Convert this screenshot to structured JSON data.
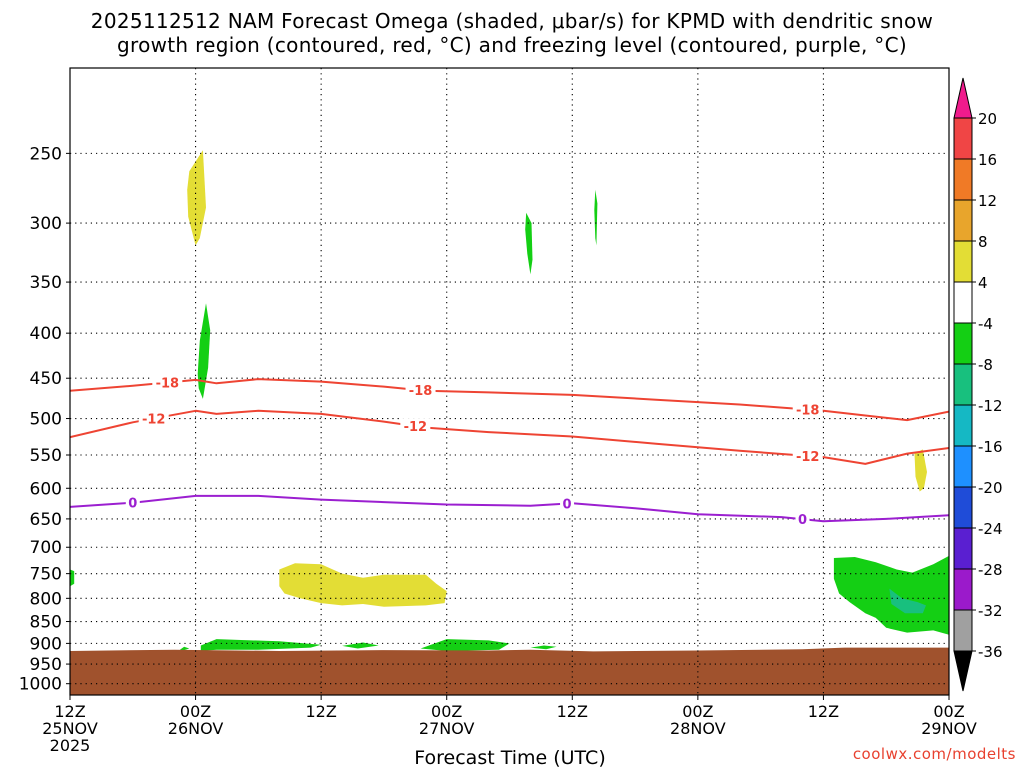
{
  "title_line1": "2025112512 NAM Forecast Omega (shaded, μbar/s) for KPMD with dendritic snow",
  "title_line2": "growth region (contoured, red, °C) and freezing level (contoured, purple, °C)",
  "credit": "coolwx.com/modelts",
  "chart_data": {
    "type": "contour",
    "title": "2025112512 NAM Forecast Omega (shaded, μbar/s) for KPMD with dendritic snow growth region (contoured, red, °C) and freezing level (contoured, purple, °C)",
    "xlabel": "Forecast Time (UTC)",
    "ylabel": "",
    "x_range_hours": [
      0,
      84
    ],
    "y_range_hpa": [
      200,
      1030
    ],
    "y_scale": "log-pressure",
    "grid": true,
    "x_ticks": [
      {
        "hour": 0,
        "lines": [
          "12Z",
          "25NOV",
          "2025"
        ]
      },
      {
        "hour": 12,
        "lines": [
          "00Z",
          "26NOV"
        ]
      },
      {
        "hour": 24,
        "lines": [
          "12Z"
        ]
      },
      {
        "hour": 36,
        "lines": [
          "00Z",
          "27NOV"
        ]
      },
      {
        "hour": 48,
        "lines": [
          "12Z"
        ]
      },
      {
        "hour": 60,
        "lines": [
          "00Z",
          "28NOV"
        ]
      },
      {
        "hour": 72,
        "lines": [
          "12Z"
        ]
      },
      {
        "hour": 84,
        "lines": [
          "00Z",
          "29NOV"
        ]
      }
    ],
    "y_ticks": [
      250,
      300,
      350,
      400,
      450,
      500,
      550,
      600,
      650,
      700,
      750,
      800,
      850,
      900,
      950,
      1000
    ],
    "colorbar": {
      "labels": [
        "20",
        "16",
        "12",
        "8",
        "4",
        "-4",
        "-8",
        "-12",
        "-16",
        "-20",
        "-24",
        "-28",
        "-32",
        "-36"
      ],
      "colors": [
        "#f01b8c",
        "#f04545",
        "#f07a26",
        "#e8a52c",
        "#e3dd35",
        "#ffffff",
        "#14cf14",
        "#18c07e",
        "#15b8c4",
        "#1e90ff",
        "#1f4cd8",
        "#5a1fd1",
        "#9b1acb",
        "#a0a0a0",
        "#000000"
      ]
    },
    "contours": [
      {
        "name": "-18",
        "color": "#ee4433",
        "label_hours": [
          9.3,
          33.5,
          70.5
        ],
        "points": [
          [
            0,
            465
          ],
          [
            6,
            459
          ],
          [
            12,
            452
          ],
          [
            14,
            456
          ],
          [
            18,
            451
          ],
          [
            24,
            454
          ],
          [
            30,
            460
          ],
          [
            34,
            465
          ],
          [
            40,
            467
          ],
          [
            48,
            470
          ],
          [
            56,
            476
          ],
          [
            64,
            482
          ],
          [
            72,
            490
          ],
          [
            76,
            496
          ],
          [
            80,
            502
          ],
          [
            84,
            491
          ]
        ]
      },
      {
        "name": "-12",
        "color": "#ee4433",
        "label_hours": [
          8.0,
          33.0,
          70.5
        ],
        "points": [
          [
            0,
            525
          ],
          [
            6,
            505
          ],
          [
            12,
            490
          ],
          [
            14,
            494
          ],
          [
            18,
            490
          ],
          [
            24,
            494
          ],
          [
            30,
            504
          ],
          [
            34,
            512
          ],
          [
            40,
            518
          ],
          [
            48,
            524
          ],
          [
            56,
            534
          ],
          [
            64,
            544
          ],
          [
            72,
            553
          ],
          [
            76,
            563
          ],
          [
            80,
            548
          ],
          [
            84,
            540
          ]
        ]
      },
      {
        "name": "0",
        "color": "#9b1fd0",
        "label_hours": [
          6.0,
          47.5,
          70.0
        ],
        "points": [
          [
            0,
            630
          ],
          [
            6,
            623
          ],
          [
            12,
            612
          ],
          [
            18,
            612
          ],
          [
            24,
            618
          ],
          [
            30,
            622
          ],
          [
            36,
            626
          ],
          [
            44,
            628
          ],
          [
            48,
            624
          ],
          [
            54,
            632
          ],
          [
            60,
            642
          ],
          [
            68,
            647
          ],
          [
            72,
            654
          ],
          [
            78,
            650
          ],
          [
            84,
            644
          ]
        ]
      }
    ],
    "shaded_regions": [
      {
        "value_range": "4 to 8",
        "color": "#e3dd35",
        "points": [
          [
            11.4,
            262
          ],
          [
            12.7,
            248
          ],
          [
            13.0,
            288
          ],
          [
            12.4,
            312
          ],
          [
            12.0,
            318
          ],
          [
            11.3,
            295
          ],
          [
            11.2,
            275
          ]
        ]
      },
      {
        "value_range": "-4 to -8",
        "color": "#14cf14",
        "points": [
          [
            12.2,
            445
          ],
          [
            12.4,
            408
          ],
          [
            13.0,
            370
          ],
          [
            13.4,
            397
          ],
          [
            13.2,
            438
          ],
          [
            12.7,
            475
          ],
          [
            12.3,
            462
          ]
        ]
      },
      {
        "value_range": "-4 to -8",
        "color": "#14cf14",
        "points": [
          [
            43.6,
            292
          ],
          [
            44.1,
            300
          ],
          [
            44.2,
            330
          ],
          [
            44.0,
            343
          ],
          [
            43.7,
            325
          ],
          [
            43.5,
            305
          ]
        ]
      },
      {
        "value_range": "-4 to -8",
        "color": "#14cf14",
        "points": [
          [
            50.2,
            275
          ],
          [
            50.4,
            285
          ],
          [
            50.3,
            318
          ],
          [
            50.2,
            312
          ],
          [
            50.1,
            290
          ]
        ]
      },
      {
        "value_range": "4 to 8",
        "color": "#e3dd35",
        "points": [
          [
            20.0,
            742
          ],
          [
            21.5,
            730
          ],
          [
            24.0,
            732
          ],
          [
            26.0,
            750
          ],
          [
            28.0,
            758
          ],
          [
            30.0,
            752
          ],
          [
            34.0,
            752
          ],
          [
            35.0,
            770
          ],
          [
            36.0,
            785
          ],
          [
            35.8,
            810
          ],
          [
            34.0,
            815
          ],
          [
            30.0,
            818
          ],
          [
            28.0,
            812
          ],
          [
            26.0,
            815
          ],
          [
            24.0,
            810
          ],
          [
            22.0,
            800
          ],
          [
            20.5,
            790
          ],
          [
            20.0,
            775
          ]
        ]
      },
      {
        "value_range": "4 to 8",
        "color": "#e3dd35",
        "points": [
          [
            80.7,
            548
          ],
          [
            81.5,
            542
          ],
          [
            81.9,
            575
          ],
          [
            81.6,
            600
          ],
          [
            81.2,
            605
          ],
          [
            80.8,
            582
          ]
        ]
      },
      {
        "value_range": "-4 to -8",
        "color": "#14cf14",
        "points": [
          [
            73.0,
            720
          ],
          [
            75.0,
            718
          ],
          [
            77.0,
            728
          ],
          [
            79.0,
            742
          ],
          [
            80.5,
            748
          ],
          [
            82.5,
            732
          ],
          [
            84.0,
            716
          ],
          [
            84.0,
            880
          ],
          [
            82.5,
            870
          ],
          [
            80.0,
            875
          ],
          [
            78.0,
            864
          ],
          [
            77.0,
            842
          ],
          [
            76.0,
            832
          ],
          [
            74.5,
            808
          ],
          [
            73.5,
            790
          ],
          [
            73.0,
            760
          ]
        ]
      },
      {
        "value_range": "-8 to -12",
        "color": "#18c07e",
        "points": [
          [
            78.3,
            780
          ],
          [
            79.5,
            800
          ],
          [
            81.0,
            808
          ],
          [
            81.8,
            815
          ],
          [
            81.5,
            832
          ],
          [
            79.8,
            832
          ],
          [
            78.5,
            812
          ]
        ]
      },
      {
        "value_range": "-4 to -8",
        "color": "#14cf14",
        "points": [
          [
            12.5,
            905
          ],
          [
            14.0,
            890
          ],
          [
            20.0,
            895
          ],
          [
            24.0,
            903
          ],
          [
            23.0,
            910
          ],
          [
            18.0,
            915
          ],
          [
            14.0,
            915
          ],
          [
            12.5,
            918
          ]
        ]
      },
      {
        "value_range": "-4 to -8",
        "color": "#14cf14",
        "points": [
          [
            33.5,
            912
          ],
          [
            36.0,
            890
          ],
          [
            40.0,
            893
          ],
          [
            42.0,
            900
          ],
          [
            41.0,
            915
          ],
          [
            36.0,
            918
          ]
        ]
      },
      {
        "value_range": "-4 to -8",
        "color": "#14cf14",
        "points": [
          [
            26.0,
            906
          ],
          [
            28.0,
            898
          ],
          [
            29.5,
            905
          ],
          [
            27.5,
            912
          ]
        ]
      },
      {
        "value_range": "-4 to -8",
        "color": "#14cf14",
        "points": [
          [
            10.5,
            915
          ],
          [
            10.9,
            908
          ],
          [
            11.4,
            912
          ],
          [
            10.8,
            917
          ]
        ]
      },
      {
        "value_range": "-4 to -8",
        "color": "#14cf14",
        "points": [
          [
            44.0,
            910
          ],
          [
            45.3,
            905
          ],
          [
            46.5,
            908
          ],
          [
            45.5,
            914
          ]
        ]
      },
      {
        "value_range": "-4 to -8",
        "color": "#14cf14",
        "points": [
          [
            0.0,
            742
          ],
          [
            0.4,
            745
          ],
          [
            0.4,
            770
          ],
          [
            0.0,
            775
          ]
        ]
      }
    ],
    "terrain": {
      "color": "#a0522d",
      "surface_hpa": 915
    },
    "terrain_surface": [
      [
        0,
        918
      ],
      [
        10,
        915
      ],
      [
        20,
        918
      ],
      [
        30,
        916
      ],
      [
        40,
        917
      ],
      [
        44,
        915
      ],
      [
        50,
        919
      ],
      [
        60,
        917
      ],
      [
        70,
        914
      ],
      [
        74,
        910
      ],
      [
        84,
        910
      ]
    ]
  }
}
